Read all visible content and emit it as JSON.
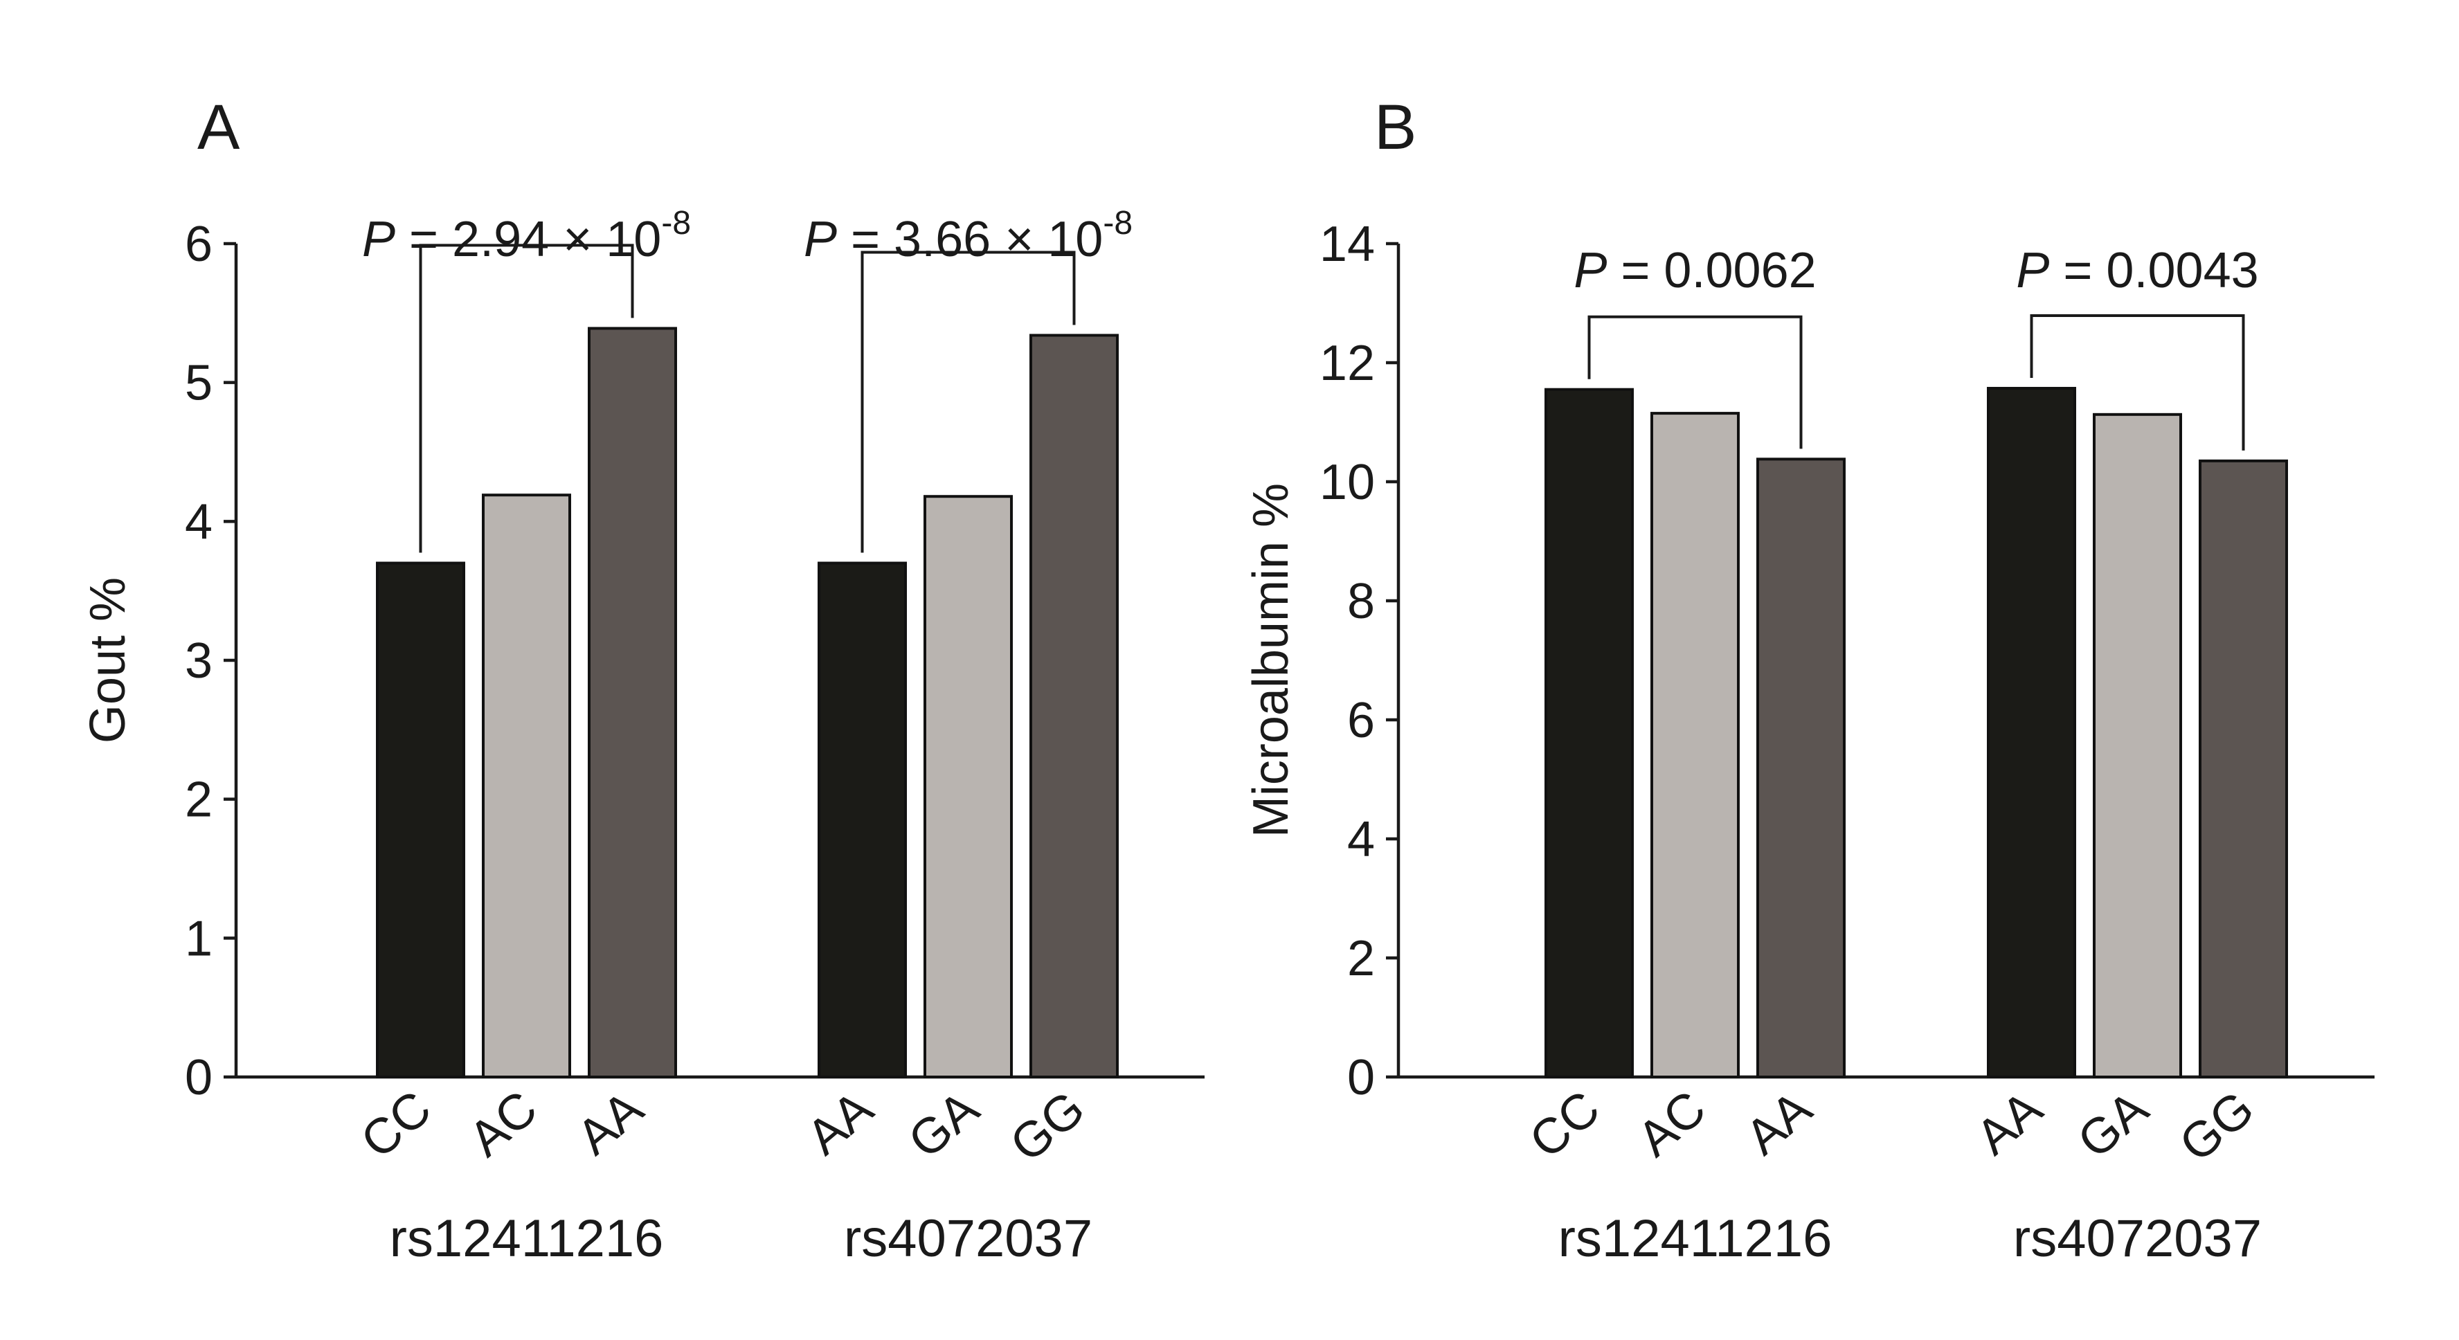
{
  "chart_data": [
    {
      "type": "bar",
      "panel_label": "A",
      "ylabel": "Gout %",
      "ylim": [
        0,
        6
      ],
      "yticks": [
        "0",
        "1",
        "2",
        "3",
        "4",
        "5",
        "6"
      ],
      "grid": false,
      "groups": [
        {
          "name": "rs12411216",
          "categories": [
            "CC",
            "AC",
            "AA"
          ],
          "values": [
            3.7,
            4.19,
            5.39
          ],
          "p_value": {
            "prefix": "P",
            "text": " = 2.94 × 10",
            "exponent": "-8",
            "from": 0,
            "to": 2
          }
        },
        {
          "name": "rs4072037",
          "categories": [
            "AA",
            "GA",
            "GG"
          ],
          "values": [
            3.7,
            4.18,
            5.34
          ],
          "p_value": {
            "prefix": "P",
            "text": " = 3.66 × 10",
            "exponent": "-8",
            "from": 0,
            "to": 2
          }
        }
      ],
      "bar_colors": [
        "#1b1b17",
        "#b9b4b0",
        "#5c5552"
      ]
    },
    {
      "type": "bar",
      "panel_label": "B",
      "ylabel": "Microalbumin %",
      "ylim": [
        0,
        14
      ],
      "yticks": [
        "0",
        "2",
        "4",
        "6",
        "8",
        "10",
        "12",
        "14"
      ],
      "grid": false,
      "groups": [
        {
          "name": "rs12411216",
          "categories": [
            "CC",
            "AC",
            "AA"
          ],
          "values": [
            11.55,
            11.15,
            10.38
          ],
          "p_value": {
            "prefix": "P",
            "text": " = 0.0062",
            "exponent": "",
            "from": 0,
            "to": 2
          }
        },
        {
          "name": "rs4072037",
          "categories": [
            "AA",
            "GA",
            "GG"
          ],
          "values": [
            11.57,
            11.13,
            10.35
          ],
          "p_value": {
            "prefix": "P",
            "text": " = 0.0043",
            "exponent": "",
            "from": 0,
            "to": 2
          }
        }
      ],
      "bar_colors": [
        "#1b1b17",
        "#b9b4b0",
        "#5c5552"
      ]
    }
  ]
}
